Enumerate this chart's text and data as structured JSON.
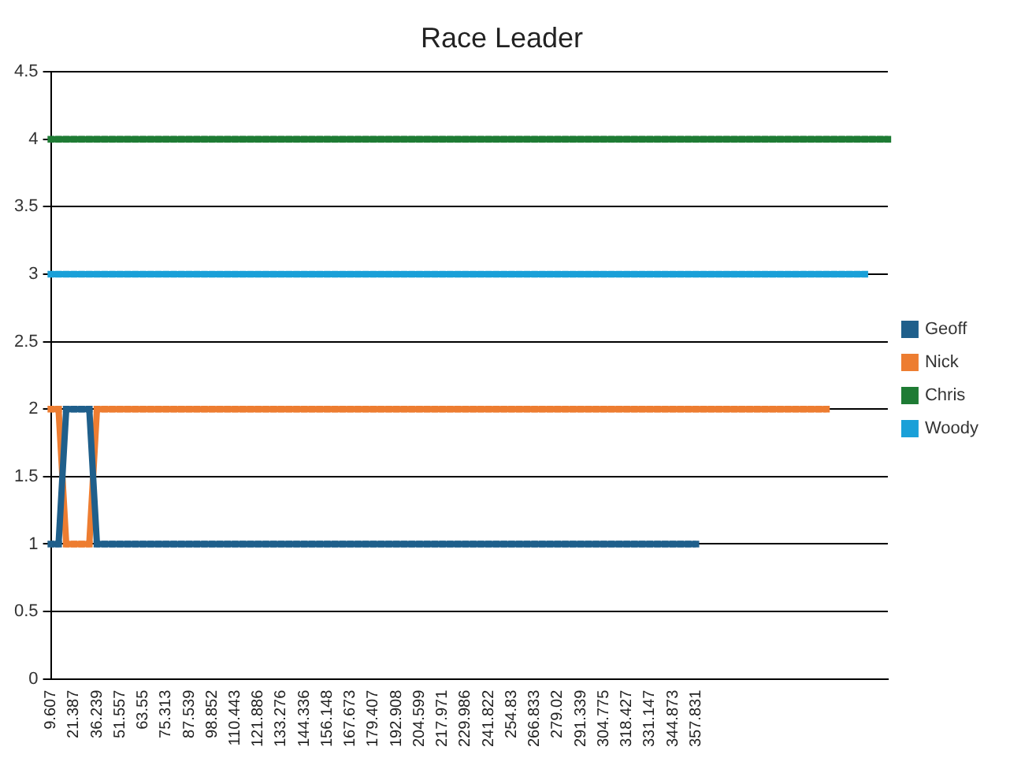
{
  "chart_data": {
    "type": "line",
    "title": "Race Leader",
    "categories": [
      "9.607",
      null,
      null,
      "21.387",
      null,
      null,
      "36.239",
      null,
      null,
      "51.557",
      null,
      null,
      "63.55",
      null,
      null,
      "75.313",
      null,
      null,
      "87.539",
      null,
      null,
      "98.852",
      null,
      null,
      "110.443",
      null,
      null,
      "121.886",
      null,
      null,
      "133.276",
      null,
      null,
      "144.336",
      null,
      null,
      "156.148",
      null,
      null,
      "167.673",
      null,
      null,
      "179.407",
      null,
      null,
      "192.908",
      null,
      null,
      "204.599",
      null,
      null,
      "217.971",
      null,
      null,
      "229.986",
      null,
      null,
      "241.822",
      null,
      null,
      "254.83",
      null,
      null,
      "266.833",
      null,
      null,
      "279.02",
      null,
      null,
      "291.339",
      null,
      null,
      "304.775",
      null,
      null,
      "318.427",
      null,
      null,
      "331.147",
      null,
      null,
      "344.873",
      null,
      null,
      "357.831",
      null,
      null,
      null,
      null,
      null,
      null,
      null,
      null,
      null,
      null,
      null,
      null,
      null,
      null,
      null,
      null,
      null,
      null,
      null,
      null,
      null,
      null,
      null,
      null,
      null
    ],
    "series": [
      {
        "name": "Geoff",
        "color": "#1f5f8b",
        "values": [
          1,
          1,
          2,
          2,
          2,
          2,
          1,
          1,
          1,
          1,
          1,
          1,
          1,
          1,
          1,
          1,
          1,
          1,
          1,
          1,
          1,
          1,
          1,
          1,
          1,
          1,
          1,
          1,
          1,
          1,
          1,
          1,
          1,
          1,
          1,
          1,
          1,
          1,
          1,
          1,
          1,
          1,
          1,
          1,
          1,
          1,
          1,
          1,
          1,
          1,
          1,
          1,
          1,
          1,
          1,
          1,
          1,
          1,
          1,
          1,
          1,
          1,
          1,
          1,
          1,
          1,
          1,
          1,
          1,
          1,
          1,
          1,
          1,
          1,
          1,
          1,
          1,
          1,
          1,
          1,
          1,
          1,
          1,
          1,
          1,
          null,
          null,
          null,
          null,
          null,
          null,
          null,
          null,
          null,
          null,
          null,
          null,
          null,
          null,
          null,
          null,
          null,
          null,
          null,
          null,
          null,
          null,
          null,
          null,
          null
        ]
      },
      {
        "name": "Nick",
        "color": "#ed7d31",
        "values": [
          2,
          2,
          1,
          1,
          1,
          1,
          2,
          2,
          2,
          2,
          2,
          2,
          2,
          2,
          2,
          2,
          2,
          2,
          2,
          2,
          2,
          2,
          2,
          2,
          2,
          2,
          2,
          2,
          2,
          2,
          2,
          2,
          2,
          2,
          2,
          2,
          2,
          2,
          2,
          2,
          2,
          2,
          2,
          2,
          2,
          2,
          2,
          2,
          2,
          2,
          2,
          2,
          2,
          2,
          2,
          2,
          2,
          2,
          2,
          2,
          2,
          2,
          2,
          2,
          2,
          2,
          2,
          2,
          2,
          2,
          2,
          2,
          2,
          2,
          2,
          2,
          2,
          2,
          2,
          2,
          2,
          2,
          2,
          2,
          2,
          2,
          2,
          2,
          2,
          2,
          2,
          2,
          2,
          2,
          2,
          2,
          2,
          2,
          2,
          2,
          2,
          2,
          null,
          null,
          null,
          null,
          null,
          null,
          null,
          null
        ]
      },
      {
        "name": "Chris",
        "color": "#1e7b34",
        "values": [
          4,
          4,
          4,
          4,
          4,
          4,
          4,
          4,
          4,
          4,
          4,
          4,
          4,
          4,
          4,
          4,
          4,
          4,
          4,
          4,
          4,
          4,
          4,
          4,
          4,
          4,
          4,
          4,
          4,
          4,
          4,
          4,
          4,
          4,
          4,
          4,
          4,
          4,
          4,
          4,
          4,
          4,
          4,
          4,
          4,
          4,
          4,
          4,
          4,
          4,
          4,
          4,
          4,
          4,
          4,
          4,
          4,
          4,
          4,
          4,
          4,
          4,
          4,
          4,
          4,
          4,
          4,
          4,
          4,
          4,
          4,
          4,
          4,
          4,
          4,
          4,
          4,
          4,
          4,
          4,
          4,
          4,
          4,
          4,
          4,
          4,
          4,
          4,
          4,
          4,
          4,
          4,
          4,
          4,
          4,
          4,
          4,
          4,
          4,
          4,
          4,
          4,
          4,
          4,
          4,
          4,
          4,
          4,
          4,
          4
        ]
      },
      {
        "name": "Woody",
        "color": "#1aa0d8",
        "values": [
          3,
          3,
          3,
          3,
          3,
          3,
          3,
          3,
          3,
          3,
          3,
          3,
          3,
          3,
          3,
          3,
          3,
          3,
          3,
          3,
          3,
          3,
          3,
          3,
          3,
          3,
          3,
          3,
          3,
          3,
          3,
          3,
          3,
          3,
          3,
          3,
          3,
          3,
          3,
          3,
          3,
          3,
          3,
          3,
          3,
          3,
          3,
          3,
          3,
          3,
          3,
          3,
          3,
          3,
          3,
          3,
          3,
          3,
          3,
          3,
          3,
          3,
          3,
          3,
          3,
          3,
          3,
          3,
          3,
          3,
          3,
          3,
          3,
          3,
          3,
          3,
          3,
          3,
          3,
          3,
          3,
          3,
          3,
          3,
          3,
          3,
          3,
          3,
          3,
          3,
          3,
          3,
          3,
          3,
          3,
          3,
          3,
          3,
          3,
          3,
          3,
          3,
          3,
          3,
          3,
          3,
          3,
          null,
          null,
          null
        ]
      }
    ],
    "ylim": [
      0,
      4.5
    ],
    "yticks": [
      0,
      0.5,
      1,
      1.5,
      2,
      2.5,
      3,
      3.5,
      4,
      4.5
    ],
    "grid": "y",
    "legend": "right",
    "marker": "square"
  }
}
